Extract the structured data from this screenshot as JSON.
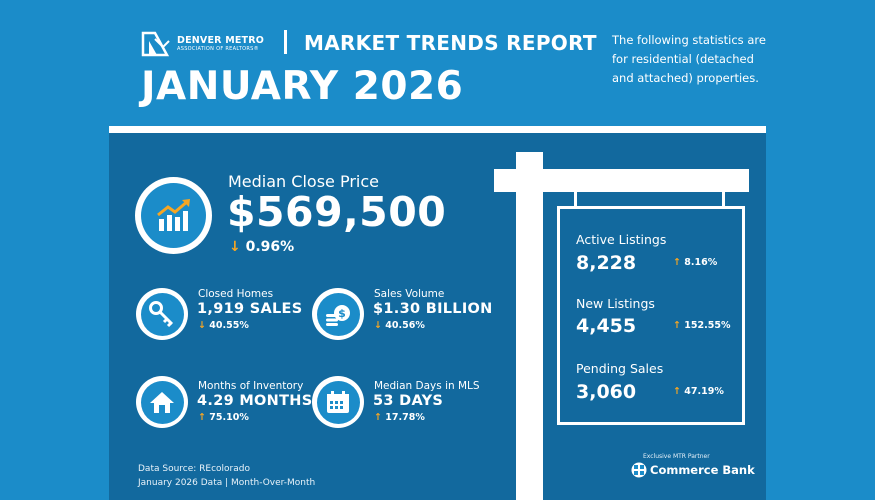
{
  "header": {
    "logo_line1": "DENVER METRO",
    "logo_line2": "ASSOCIATION OF REALTORS®",
    "report_title": "MARKET TRENDS REPORT",
    "month": "JANUARY 2026",
    "note": "The following statistics are for residential (detached and attached) properties."
  },
  "median_close_price": {
    "label": "Median Close Price",
    "value": "$569,500",
    "change": "0.96%",
    "direction": "down",
    "icon": "chart-up-icon"
  },
  "stats": {
    "closed_homes": {
      "label": "Closed Homes",
      "value": "1,919 SALES",
      "change": "40.55%",
      "direction": "down",
      "icon": "key-icon"
    },
    "sales_volume": {
      "label": "Sales Volume",
      "value": "$1.30 BILLION",
      "change": "40.56%",
      "direction": "down",
      "icon": "coins-icon"
    },
    "months_inventory": {
      "label": "Months of Inventory",
      "value": "4.29 MONTHS",
      "change": "75.10%",
      "direction": "up",
      "icon": "house-icon"
    },
    "median_days": {
      "label": "Median Days in MLS",
      "value": "53 DAYS",
      "change": "17.78%",
      "direction": "up",
      "icon": "calendar-icon"
    }
  },
  "sign": {
    "active": {
      "label": "Active Listings",
      "value": "8,228",
      "change": "8.16%",
      "direction": "up"
    },
    "new": {
      "label": "New Listings",
      "value": "4,455",
      "change": "152.55%",
      "direction": "up"
    },
    "pending": {
      "label": "Pending Sales",
      "value": "3,060",
      "change": "47.19%",
      "direction": "up"
    }
  },
  "arrows": {
    "up": "↑",
    "down": "↓"
  },
  "footer": {
    "source_line1": "Data Source: REcolorado",
    "source_line2": "January 2026 Data | Month-Over-Month",
    "partner": "Exclusive MTR Partner",
    "bank": "Commerce Bank"
  },
  "colors": {
    "background": "#1b8cc9",
    "panel": "#12699e",
    "arrow": "#f6a623"
  }
}
